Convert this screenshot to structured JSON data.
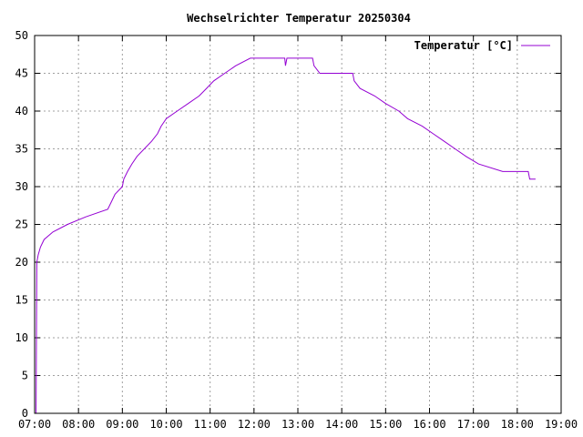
{
  "chart_data": {
    "type": "line",
    "title": "Wechselrichter Temperatur 20250304",
    "xlabel": "",
    "ylabel": "",
    "x_tick_labels": [
      "07:00",
      "08:00",
      "09:00",
      "10:00",
      "11:00",
      "12:00",
      "13:00",
      "14:00",
      "15:00",
      "16:00",
      "17:00",
      "18:00",
      "19:00"
    ],
    "y_tick_labels": [
      "0",
      "5",
      "10",
      "15",
      "20",
      "25",
      "30",
      "35",
      "40",
      "45",
      "50"
    ],
    "xlim": [
      "07:00",
      "19:00"
    ],
    "ylim": [
      0,
      50
    ],
    "grid": true,
    "legend_position": "top-right",
    "series": [
      {
        "name": "Temperatur [°C]",
        "color": "#9400d3",
        "points": [
          [
            "07:00",
            0
          ],
          [
            "07:02",
            0
          ],
          [
            "07:03",
            20
          ],
          [
            "07:05",
            21
          ],
          [
            "07:08",
            22
          ],
          [
            "07:13",
            23
          ],
          [
            "07:25",
            24
          ],
          [
            "07:45",
            25
          ],
          [
            "08:10",
            26
          ],
          [
            "08:40",
            27
          ],
          [
            "08:45",
            28
          ],
          [
            "08:50",
            29
          ],
          [
            "09:00",
            30
          ],
          [
            "09:02",
            31
          ],
          [
            "09:07",
            32
          ],
          [
            "09:13",
            33
          ],
          [
            "09:20",
            34
          ],
          [
            "09:30",
            35
          ],
          [
            "09:40",
            36
          ],
          [
            "09:48",
            37
          ],
          [
            "09:53",
            38
          ],
          [
            "10:00",
            39
          ],
          [
            "10:15",
            40
          ],
          [
            "10:30",
            41
          ],
          [
            "10:45",
            42
          ],
          [
            "10:55",
            43
          ],
          [
            "11:05",
            44
          ],
          [
            "11:20",
            45
          ],
          [
            "11:35",
            46
          ],
          [
            "11:55",
            47
          ],
          [
            "12:42",
            47
          ],
          [
            "12:43",
            46
          ],
          [
            "12:45",
            47
          ],
          [
            "13:20",
            47
          ],
          [
            "13:22",
            46
          ],
          [
            "13:30",
            45
          ],
          [
            "14:15",
            45
          ],
          [
            "14:17",
            44
          ],
          [
            "14:25",
            43
          ],
          [
            "14:45",
            42
          ],
          [
            "15:00",
            41
          ],
          [
            "15:18",
            40
          ],
          [
            "15:30",
            39
          ],
          [
            "15:50",
            38
          ],
          [
            "16:05",
            37
          ],
          [
            "16:20",
            36
          ],
          [
            "16:35",
            35
          ],
          [
            "16:50",
            34
          ],
          [
            "17:07",
            33
          ],
          [
            "17:40",
            32
          ],
          [
            "18:15",
            32
          ],
          [
            "18:17",
            31
          ],
          [
            "18:25",
            31
          ]
        ]
      }
    ]
  }
}
